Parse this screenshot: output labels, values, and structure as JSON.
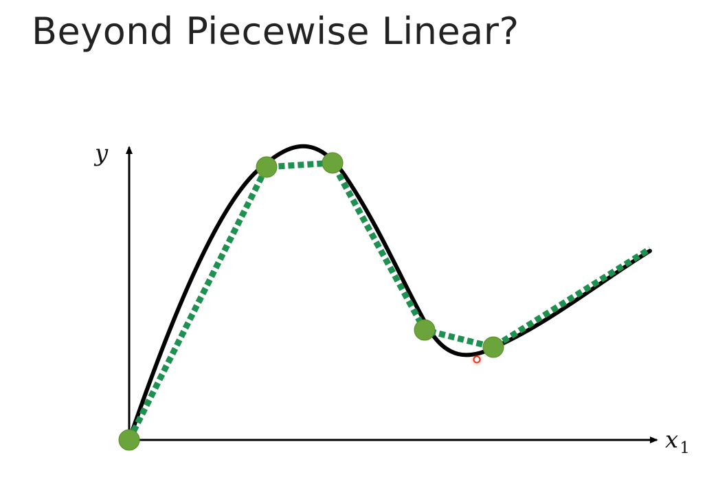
{
  "slide": {
    "title": "Beyond Piecewise Linear?"
  },
  "axes": {
    "y_label": "y",
    "x_label_base": "x",
    "x_label_sub": "1"
  },
  "colors": {
    "curve": "#000000",
    "approximation": "#1e9150",
    "points": "#6ba43a",
    "points_stroke": "#578a2c",
    "pointer": "#e8331c"
  }
}
